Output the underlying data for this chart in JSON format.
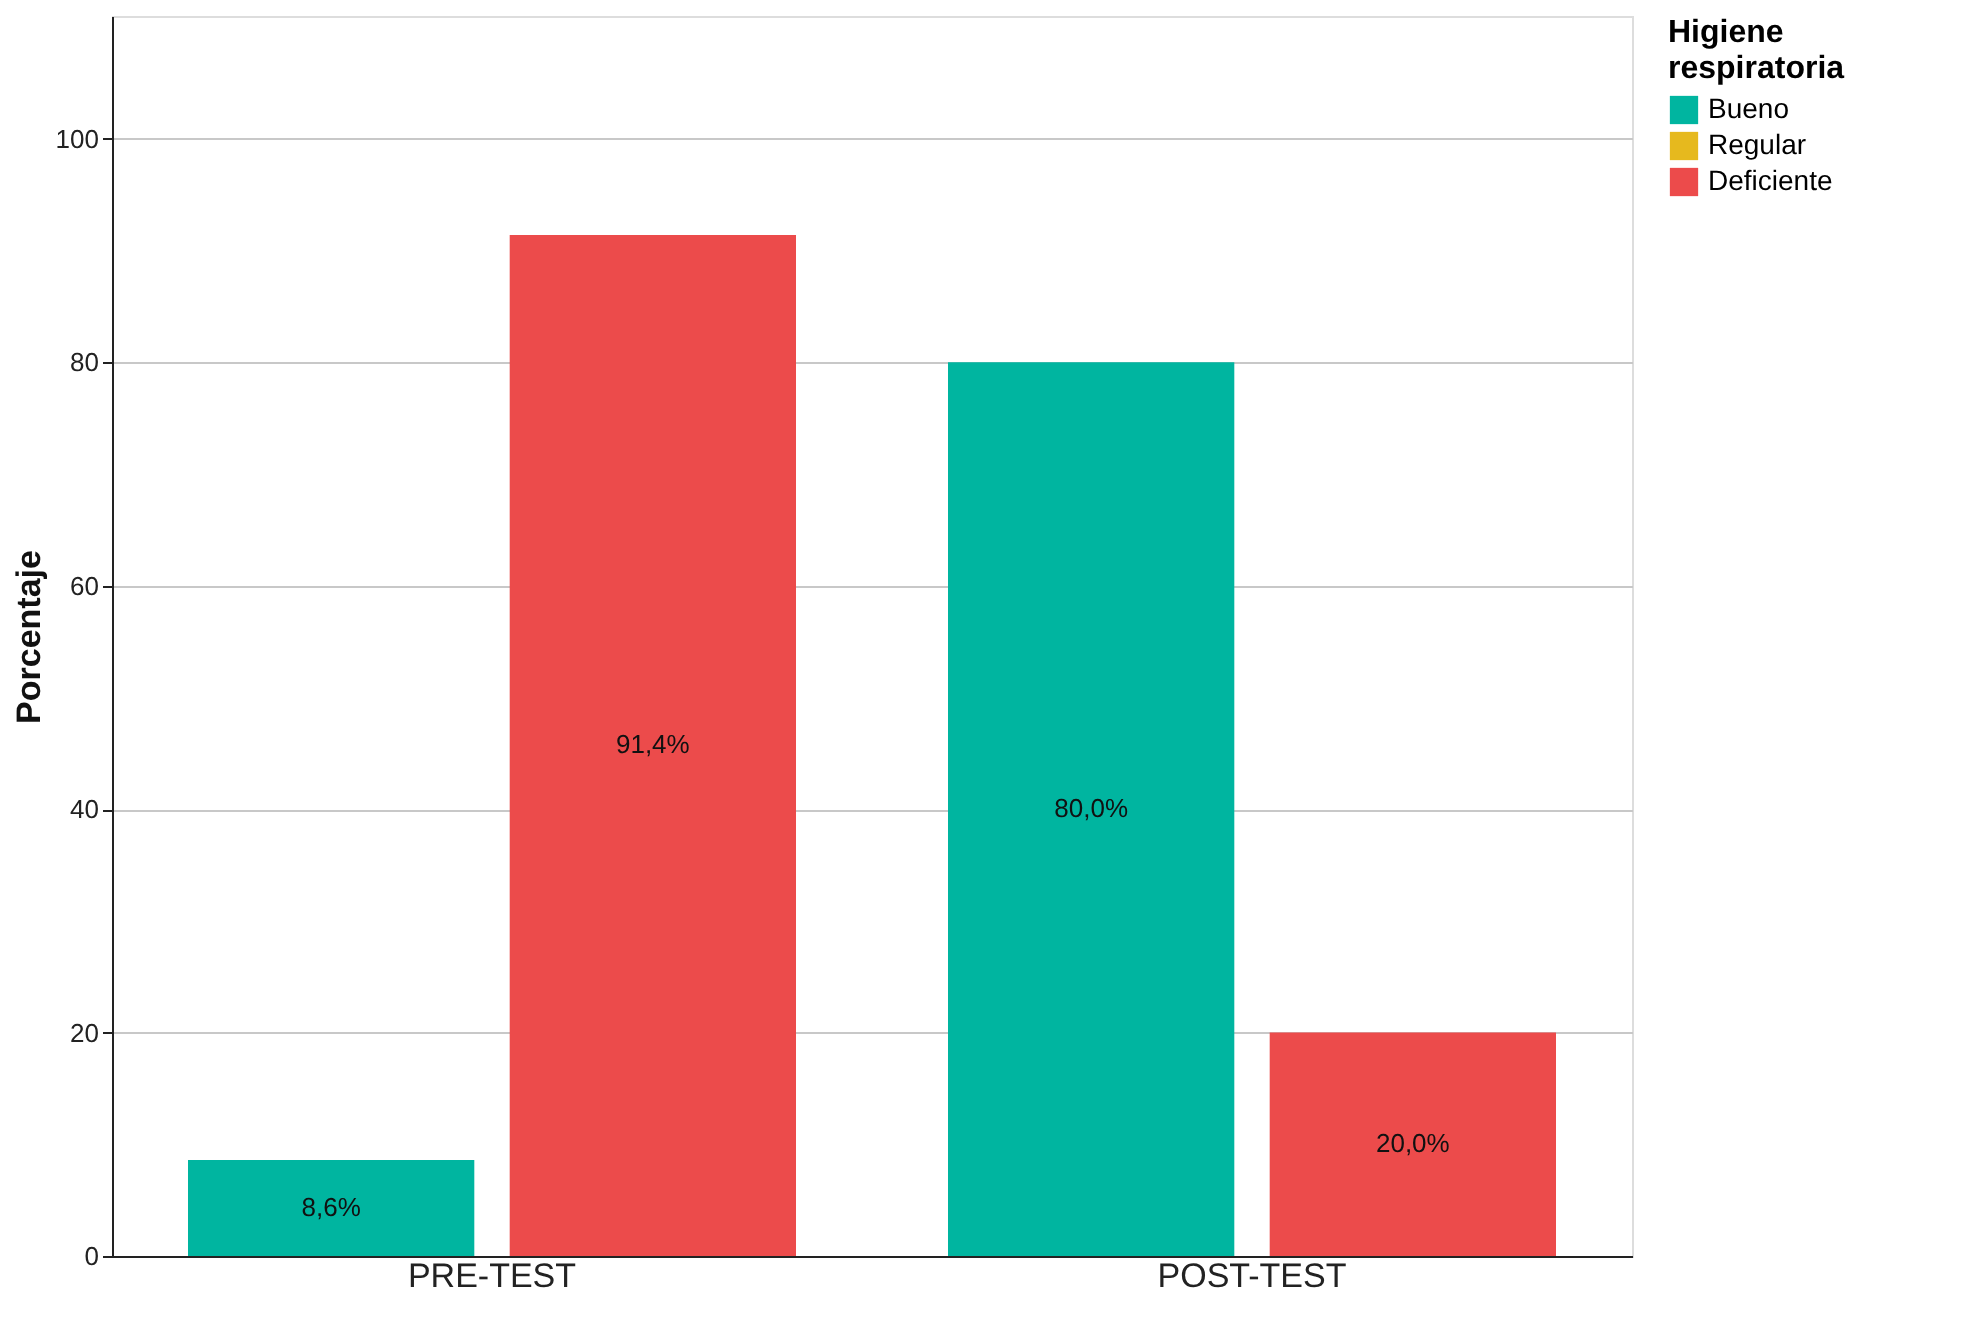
{
  "chart_data": {
    "type": "bar",
    "ylabel": "Porcentaje",
    "legend_title": "Higiene respiratoria",
    "categories": [
      "PRE-TEST",
      "POST-TEST"
    ],
    "series": [
      {
        "name": "Bueno",
        "color": "#00b5a0",
        "values": [
          8.6,
          80.0
        ],
        "value_labels": [
          "8,6%",
          "80,0%"
        ]
      },
      {
        "name": "Regular",
        "color": "#e6b91e",
        "values": [
          null,
          null
        ],
        "value_labels": [
          null,
          null
        ]
      },
      {
        "name": "Deficiente",
        "color": "#ec4b4b",
        "values": [
          91.4,
          20.0
        ],
        "value_labels": [
          "91,4%",
          "20,0%"
        ]
      }
    ],
    "ylim": [
      0,
      111
    ],
    "yticks": [
      0,
      20,
      40,
      60,
      80,
      100
    ],
    "grid": "y",
    "legend": "top right"
  }
}
